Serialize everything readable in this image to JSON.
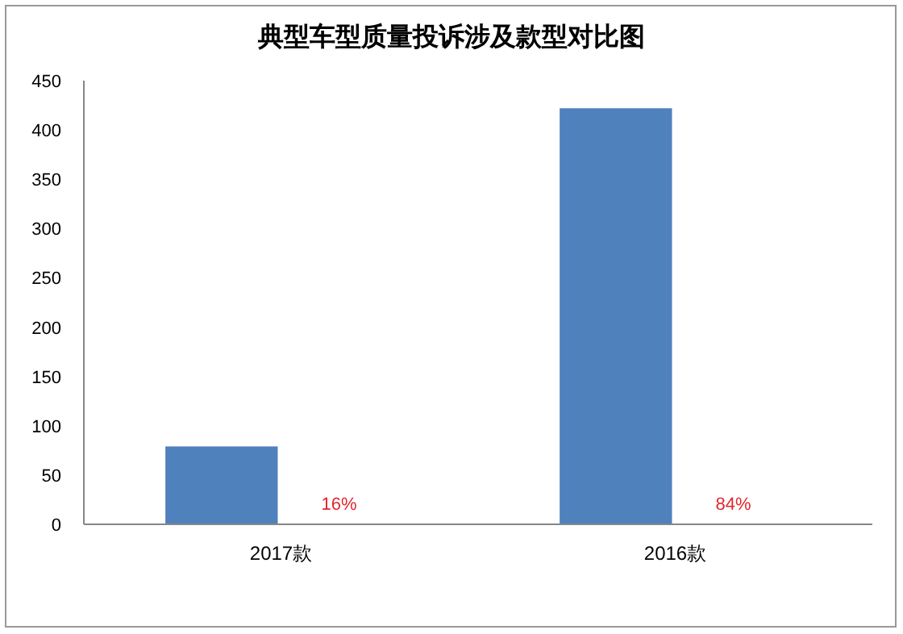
{
  "chart_data": {
    "type": "bar",
    "title": "典型车型质量投诉涉及款型对比图",
    "categories": [
      "2017款",
      "2016款"
    ],
    "values": [
      79,
      422
    ],
    "color": "#4f81bd",
    "annotations": [
      {
        "text": "16%",
        "x": "2017款",
        "y": 0
      },
      {
        "text": "84%",
        "x": "2016款",
        "y": 0
      }
    ],
    "ylim": [
      0,
      450
    ],
    "yticks": [
      0,
      50,
      100,
      150,
      200,
      250,
      300,
      350,
      400,
      450
    ],
    "grid": false
  }
}
